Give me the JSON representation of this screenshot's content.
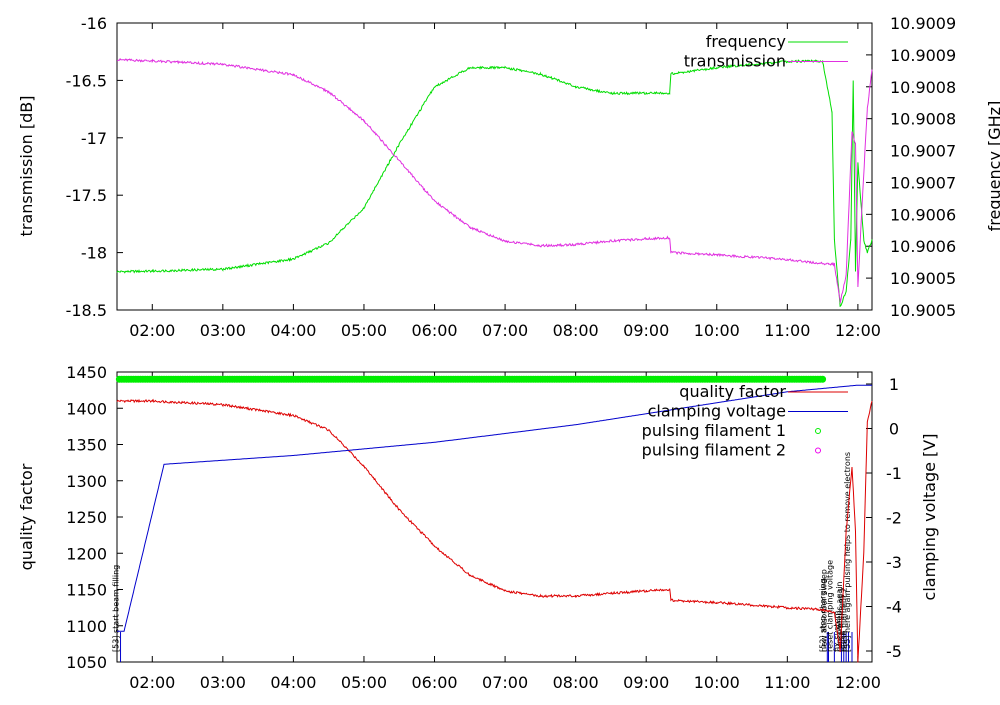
{
  "chart_data": [
    {
      "type": "line",
      "title": "",
      "xlabel": "",
      "ylabel": "transmission [dB]",
      "y2label": "frequency [GHz]",
      "x_ticks": [
        "02:00",
        "03:00",
        "04:00",
        "05:00",
        "06:00",
        "07:00",
        "08:00",
        "09:00",
        "10:00",
        "11:00",
        "12:00"
      ],
      "xlim": [
        "01:30",
        "12:12"
      ],
      "ylim": [
        -18.5,
        -16
      ],
      "y_ticks": [
        "-16",
        "-16.5",
        "-17",
        "-17.5",
        "-18",
        "-18.5"
      ],
      "y2_ticks": [
        "10.9009",
        "10.9009",
        "10.9008",
        "10.9008",
        "10.9007",
        "10.9007",
        "10.9006",
        "10.9006",
        "10.9005",
        "10.9005"
      ],
      "y2lim": [
        10.90049,
        10.90094
      ],
      "legend_position": "top-right",
      "series": [
        {
          "name": "frequency",
          "axis": "right",
          "color": "#00dd00",
          "points": [
            [
              "01:30",
              10.90055
            ],
            [
              "02:00",
              10.900551
            ],
            [
              "03:00",
              10.900554
            ],
            [
              "04:00",
              10.90057
            ],
            [
              "04:30",
              10.900595
            ],
            [
              "05:00",
              10.90065
            ],
            [
              "05:30",
              10.90075
            ],
            [
              "06:00",
              10.90084
            ],
            [
              "06:30",
              10.90087
            ],
            [
              "07:00",
              10.90087
            ],
            [
              "07:30",
              10.90086
            ],
            [
              "08:00",
              10.90084
            ],
            [
              "08:30",
              10.90083
            ],
            [
              "09:00",
              10.90083
            ],
            [
              "09:20",
              10.90083
            ],
            [
              "09:21",
              10.90086
            ],
            [
              "10:00",
              10.90087
            ],
            [
              "11:00",
              10.90088
            ],
            [
              "11:30",
              10.90088
            ],
            [
              "11:38",
              10.9008
            ],
            [
              "11:40",
              10.9006
            ],
            [
              "11:45",
              10.900495
            ],
            [
              "11:50",
              10.90052
            ],
            [
              "11:54",
              10.9006
            ],
            [
              "11:56",
              10.90085
            ],
            [
              "11:58",
              10.90055
            ],
            [
              "12:00",
              10.90072
            ],
            [
              "12:05",
              10.9006
            ],
            [
              "12:08",
              10.90058
            ],
            [
              "12:12",
              10.9006
            ]
          ]
        },
        {
          "name": "transmission",
          "axis": "left",
          "color": "#e030e0",
          "points": [
            [
              "01:30",
              -16.32
            ],
            [
              "02:00",
              -16.33
            ],
            [
              "03:00",
              -16.36
            ],
            [
              "04:00",
              -16.45
            ],
            [
              "04:30",
              -16.6
            ],
            [
              "05:00",
              -16.85
            ],
            [
              "05:30",
              -17.2
            ],
            [
              "06:00",
              -17.55
            ],
            [
              "06:30",
              -17.78
            ],
            [
              "07:00",
              -17.9
            ],
            [
              "07:30",
              -17.94
            ],
            [
              "08:00",
              -17.93
            ],
            [
              "08:30",
              -17.9
            ],
            [
              "09:00",
              -17.88
            ],
            [
              "09:20",
              -17.87
            ],
            [
              "09:21",
              -18.0
            ],
            [
              "10:00",
              -18.02
            ],
            [
              "11:00",
              -18.06
            ],
            [
              "11:35",
              -18.1
            ],
            [
              "11:40",
              -18.1
            ],
            [
              "11:45",
              -18.43
            ],
            [
              "11:50",
              -18.2
            ],
            [
              "11:55",
              -16.95
            ],
            [
              "11:58",
              -17.05
            ],
            [
              "12:00",
              -18.3
            ],
            [
              "12:04",
              -17.5
            ],
            [
              "12:08",
              -16.75
            ],
            [
              "12:12",
              -16.4
            ]
          ]
        }
      ]
    },
    {
      "type": "line",
      "title": "",
      "xlabel": "",
      "ylabel": "quality factor",
      "y2label": "clamping voltage [V]",
      "x_ticks": [
        "02:00",
        "03:00",
        "04:00",
        "05:00",
        "06:00",
        "07:00",
        "08:00",
        "09:00",
        "10:00",
        "11:00",
        "12:00"
      ],
      "xlim": [
        "01:30",
        "12:12"
      ],
      "ylim": [
        1050,
        1450
      ],
      "y_ticks": [
        "1450",
        "1400",
        "1350",
        "1300",
        "1250",
        "1200",
        "1150",
        "1100",
        "1050"
      ],
      "y2_ticks": [
        "1",
        "0",
        "-1",
        "-2",
        "-3",
        "-4",
        "-5"
      ],
      "y2lim": [
        -5.3,
        1.3
      ],
      "legend_position": "top-right",
      "series": [
        {
          "name": "quality factor",
          "axis": "left",
          "color": "#dd0000",
          "points": [
            [
              "01:30",
              1410
            ],
            [
              "02:00",
              1410
            ],
            [
              "03:00",
              1405
            ],
            [
              "04:00",
              1390
            ],
            [
              "04:30",
              1370
            ],
            [
              "05:00",
              1320
            ],
            [
              "05:30",
              1260
            ],
            [
              "06:00",
              1210
            ],
            [
              "06:30",
              1170
            ],
            [
              "07:00",
              1148
            ],
            [
              "07:30",
              1141
            ],
            [
              "08:00",
              1141
            ],
            [
              "08:30",
              1145
            ],
            [
              "09:00",
              1148
            ],
            [
              "09:20",
              1150
            ],
            [
              "09:21",
              1135
            ],
            [
              "10:00",
              1132
            ],
            [
              "11:00",
              1125
            ],
            [
              "11:30",
              1122
            ],
            [
              "11:40",
              1118
            ],
            [
              "11:45",
              1065
            ],
            [
              "11:50",
              1230
            ],
            [
              "11:55",
              1320
            ],
            [
              "11:58",
              1230
            ],
            [
              "12:00",
              1050
            ],
            [
              "12:05",
              1200
            ],
            [
              "12:08",
              1380
            ],
            [
              "12:12",
              1410
            ]
          ]
        },
        {
          "name": "clamping voltage",
          "axis": "right",
          "color": "#0000cc",
          "points": [
            [
              "01:30",
              -4.6
            ],
            [
              "01:36",
              -4.6
            ],
            [
              "02:10",
              -0.8
            ],
            [
              "04:00",
              -0.6
            ],
            [
              "06:00",
              -0.3
            ],
            [
              "08:00",
              0.1
            ],
            [
              "10:00",
              0.6
            ],
            [
              "11:00",
              0.85
            ],
            [
              "12:00",
              1.0
            ],
            [
              "12:12",
              1.0
            ]
          ]
        },
        {
          "name": "pulsing filament 1",
          "axis": "left",
          "color": "#00ee00",
          "marker": "circle",
          "points": [
            [
              "01:32",
              1440
            ],
            [
              "11:30",
              1440
            ]
          ]
        },
        {
          "name": "pulsing filament 2",
          "axis": "left",
          "color": "#ee00ee",
          "marker": "circle",
          "points": []
        }
      ],
      "annotations": [
        {
          "text": "[53] start beam filling",
          "x": "01:33"
        },
        {
          "text": "[52] stop charging",
          "x": "11:34"
        },
        {
          "text": "new absorber sweep",
          "x": "11:35"
        },
        {
          "text": "reset clamping voltage",
          "x": "11:40"
        },
        {
          "text": "fix system",
          "x": "11:46"
        },
        {
          "text": "run sweeps again",
          "x": "11:48"
        },
        {
          "text": "pulse filament 1",
          "x": "11:50"
        },
        {
          "text": "pulse filament 2",
          "x": "11:52"
        },
        {
          "text": "[55] here again pulsing helps to remove electrons",
          "x": "11:55"
        }
      ]
    }
  ]
}
